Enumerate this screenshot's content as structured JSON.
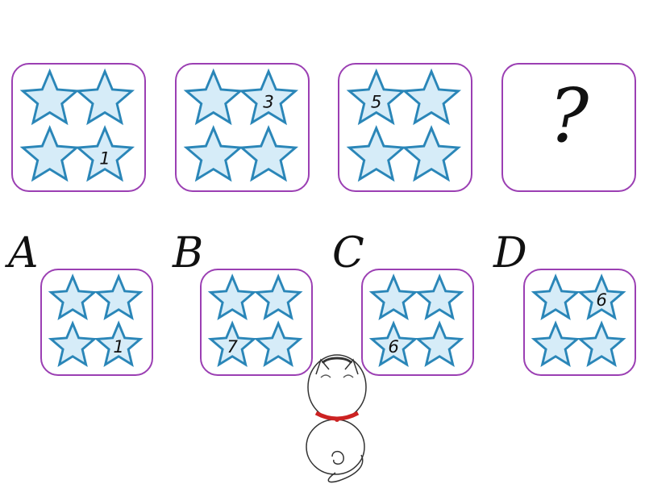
{
  "puzzle": {
    "sequence": [
      {
        "numbers": [
          "",
          "",
          "",
          "1"
        ]
      },
      {
        "numbers": [
          "",
          "3",
          "",
          ""
        ]
      },
      {
        "numbers": [
          "5",
          "",
          "",
          ""
        ]
      }
    ],
    "unknown": "?"
  },
  "options": [
    {
      "letter": "A",
      "numbers": [
        "",
        "",
        "",
        "1"
      ]
    },
    {
      "letter": "B",
      "numbers": [
        "",
        "",
        "7",
        ""
      ]
    },
    {
      "letter": "C",
      "numbers": [
        "",
        "",
        "6",
        ""
      ]
    },
    {
      "letter": "D",
      "numbers": [
        "",
        "6",
        "",
        ""
      ]
    }
  ],
  "colors": {
    "card_border": "#9b3fb3",
    "star_fill": "#d6ecf8",
    "star_stroke": "#2a86b8",
    "cat_collar": "#cc2222"
  },
  "decor": {
    "mascot": "white-cat-icon"
  }
}
